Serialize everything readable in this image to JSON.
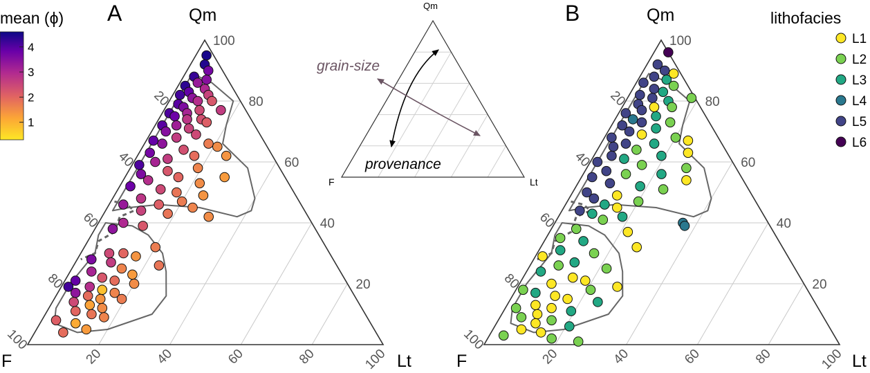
{
  "chart_data": [
    {
      "type": "scatter",
      "subtype": "ternary",
      "panel": "A",
      "vertex_labels": {
        "top": "Qm",
        "left": "F",
        "right": "Lt"
      },
      "ticks": [
        "20",
        "40",
        "60",
        "80",
        "100"
      ],
      "colorbar": {
        "title": "mean (ϕ)",
        "ticks": [
          "1",
          "2",
          "3",
          "4"
        ],
        "range": [
          0.3,
          4.6
        ],
        "colors": [
          "#fde725",
          "#fca636",
          "#e16462",
          "#b12a90",
          "#6a00a8",
          "#0d0887"
        ]
      },
      "points_note": "Qm / Lt percentages estimated; F = 100 - Qm - Lt; c = mean grain size (phi)",
      "points": [
        {
          "qm": 95,
          "lt": 3,
          "c": 4.5
        },
        {
          "qm": 92,
          "lt": 4,
          "c": 4.4
        },
        {
          "qm": 90,
          "lt": 6,
          "c": 3.6
        },
        {
          "qm": 88,
          "lt": 3,
          "c": 4.2
        },
        {
          "qm": 87,
          "lt": 7,
          "c": 3.4
        },
        {
          "qm": 86,
          "lt": 5,
          "c": 3.2
        },
        {
          "qm": 85,
          "lt": 2,
          "c": 4.3
        },
        {
          "qm": 84,
          "lt": 8,
          "c": 2.9
        },
        {
          "qm": 83,
          "lt": 4,
          "c": 3.8
        },
        {
          "qm": 82,
          "lt": 10,
          "c": 2.5
        },
        {
          "qm": 82,
          "lt": 2,
          "c": 4.1
        },
        {
          "qm": 81,
          "lt": 6,
          "c": 3.3
        },
        {
          "qm": 80,
          "lt": 12,
          "c": 2.2
        },
        {
          "qm": 80,
          "lt": 8,
          "c": 2.8
        },
        {
          "qm": 79,
          "lt": 3,
          "c": 3.9
        },
        {
          "qm": 78,
          "lt": 5,
          "c": 3.5
        },
        {
          "qm": 77,
          "lt": 16,
          "c": 2.6
        },
        {
          "qm": 77,
          "lt": 10,
          "c": 2.4
        },
        {
          "qm": 76,
          "lt": 7,
          "c": 3.0
        },
        {
          "qm": 76,
          "lt": 2,
          "c": 4.0
        },
        {
          "qm": 75,
          "lt": 4,
          "c": 3.7
        },
        {
          "qm": 74,
          "lt": 12,
          "c": 2.3
        },
        {
          "qm": 74,
          "lt": 8,
          "c": 2.7
        },
        {
          "qm": 73,
          "lt": 14,
          "c": 2.1
        },
        {
          "qm": 72,
          "lt": 6,
          "c": 3.1
        },
        {
          "qm": 72,
          "lt": 2,
          "c": 3.9
        },
        {
          "qm": 71,
          "lt": 10,
          "c": 2.5
        },
        {
          "qm": 70,
          "lt": 4,
          "c": 3.4
        },
        {
          "qm": 69,
          "lt": 13,
          "c": 2.4
        },
        {
          "qm": 68,
          "lt": 8,
          "c": 2.6
        },
        {
          "qm": 67,
          "lt": 2,
          "c": 3.8
        },
        {
          "qm": 66,
          "lt": 18,
          "c": 1.7
        },
        {
          "qm": 66,
          "lt": 5,
          "c": 3.3
        },
        {
          "qm": 65,
          "lt": 21,
          "c": 1.5
        },
        {
          "qm": 64,
          "lt": 12,
          "c": 2.3
        },
        {
          "qm": 63,
          "lt": 3,
          "c": 3.6
        },
        {
          "qm": 62,
          "lt": 25,
          "c": 1.4
        },
        {
          "qm": 62,
          "lt": 16,
          "c": 1.9
        },
        {
          "qm": 61,
          "lt": 9,
          "c": 2.6
        },
        {
          "qm": 60,
          "lt": 6,
          "c": 3.0
        },
        {
          "qm": 59,
          "lt": 2,
          "c": 4.0
        },
        {
          "qm": 58,
          "lt": 19,
          "c": 1.6
        },
        {
          "qm": 57,
          "lt": 11,
          "c": 2.2
        },
        {
          "qm": 56,
          "lt": 4,
          "c": 3.5
        },
        {
          "qm": 55,
          "lt": 28,
          "c": 1.3
        },
        {
          "qm": 55,
          "lt": 15,
          "c": 2.0
        },
        {
          "qm": 54,
          "lt": 7,
          "c": 2.8
        },
        {
          "qm": 53,
          "lt": 22,
          "c": 1.5
        },
        {
          "qm": 52,
          "lt": 3,
          "c": 3.7
        },
        {
          "qm": 51,
          "lt": 12,
          "c": 2.4
        },
        {
          "qm": 50,
          "lt": 17,
          "c": 1.8
        },
        {
          "qm": 49,
          "lt": 25,
          "c": 1.4
        },
        {
          "qm": 48,
          "lt": 8,
          "c": 2.7
        },
        {
          "qm": 47,
          "lt": 20,
          "c": 1.7
        },
        {
          "qm": 46,
          "lt": 4,
          "c": 3.2
        },
        {
          "qm": 46,
          "lt": 14,
          "c": 2.1
        },
        {
          "qm": 45,
          "lt": 24,
          "c": 1.6
        },
        {
          "qm": 44,
          "lt": 10,
          "c": 2.5
        },
        {
          "qm": 43,
          "lt": 18,
          "c": 1.8
        },
        {
          "qm": 42,
          "lt": 30,
          "c": 1.5
        },
        {
          "qm": 40,
          "lt": 7,
          "c": 2.9
        },
        {
          "qm": 39,
          "lt": 13,
          "c": 2.2
        },
        {
          "qm": 38,
          "lt": 5,
          "c": 3.3
        },
        {
          "qm": 32,
          "lt": 20,
          "c": 1.7
        },
        {
          "qm": 30,
          "lt": 8,
          "c": 2.4
        },
        {
          "qm": 30,
          "lt": 12,
          "c": 2.0
        },
        {
          "qm": 29,
          "lt": 16,
          "c": 1.4
        },
        {
          "qm": 28,
          "lt": 4,
          "c": 3.5
        },
        {
          "qm": 27,
          "lt": 10,
          "c": 2.6
        },
        {
          "qm": 26,
          "lt": 24,
          "c": 1.8
        },
        {
          "qm": 25,
          "lt": 14,
          "c": 1.6
        },
        {
          "qm": 24,
          "lt": 6,
          "c": 3.0
        },
        {
          "qm": 23,
          "lt": 18,
          "c": 1.3
        },
        {
          "qm": 22,
          "lt": 10,
          "c": 2.2
        },
        {
          "qm": 21,
          "lt": 3,
          "c": 3.8
        },
        {
          "qm": 21,
          "lt": 14,
          "c": 1.9
        },
        {
          "qm": 20,
          "lt": 20,
          "c": 1.5
        },
        {
          "qm": 19,
          "lt": 2,
          "c": 4.1
        },
        {
          "qm": 19,
          "lt": 8,
          "c": 2.8
        },
        {
          "qm": 18,
          "lt": 12,
          "c": 0.8
        },
        {
          "qm": 17,
          "lt": 16,
          "c": 1.6
        },
        {
          "qm": 17,
          "lt": 5,
          "c": 3.3
        },
        {
          "qm": 16,
          "lt": 9,
          "c": 1.9
        },
        {
          "qm": 15,
          "lt": 13,
          "c": 1.4
        },
        {
          "qm": 15,
          "lt": 19,
          "c": 1.7
        },
        {
          "qm": 14,
          "lt": 6,
          "c": 2.4
        },
        {
          "qm": 13,
          "lt": 11,
          "c": 1.2
        },
        {
          "qm": 12,
          "lt": 15,
          "c": 1.5
        },
        {
          "qm": 11,
          "lt": 8,
          "c": 2.0
        },
        {
          "qm": 10,
          "lt": 13,
          "c": 1.8
        },
        {
          "qm": 9,
          "lt": 17,
          "c": 1.6
        },
        {
          "qm": 8,
          "lt": 4,
          "c": 2.1
        },
        {
          "qm": 7,
          "lt": 10,
          "c": 1.1
        },
        {
          "qm": 5,
          "lt": 14,
          "c": 1.3
        },
        {
          "qm": 4,
          "lt": 8,
          "c": 1.9
        }
      ]
    },
    {
      "type": "scatter",
      "subtype": "ternary",
      "panel": "B",
      "vertex_labels": {
        "top": "Qm",
        "left": "F",
        "right": "Lt"
      },
      "ticks": [
        "20",
        "40",
        "60",
        "80",
        "100"
      ],
      "legend": {
        "title": "lithofacies",
        "position": "top-right",
        "entries": [
          {
            "name": "L1",
            "color": "#fde725"
          },
          {
            "name": "L2",
            "color": "#7ad151"
          },
          {
            "name": "L3",
            "color": "#22a884"
          },
          {
            "name": "L4",
            "color": "#2a788e"
          },
          {
            "name": "L5",
            "color": "#414487"
          },
          {
            "name": "L6",
            "color": "#440154"
          }
        ]
      },
      "points_note": "Qm / Lt percentages estimated; F = 100 - Qm - Lt; f = lithofacies",
      "points": [
        {
          "qm": 96,
          "lt": 4,
          "f": "L6"
        },
        {
          "qm": 92,
          "lt": 3,
          "f": "L5"
        },
        {
          "qm": 90,
          "lt": 6,
          "f": "L5"
        },
        {
          "qm": 89,
          "lt": 9,
          "f": "L1"
        },
        {
          "qm": 88,
          "lt": 4,
          "f": "L5"
        },
        {
          "qm": 87,
          "lt": 8,
          "f": "L3"
        },
        {
          "qm": 86,
          "lt": 2,
          "f": "L5"
        },
        {
          "qm": 85,
          "lt": 11,
          "f": "L2"
        },
        {
          "qm": 84,
          "lt": 6,
          "f": "L5"
        },
        {
          "qm": 83,
          "lt": 9,
          "f": "L3"
        },
        {
          "qm": 82,
          "lt": 3,
          "f": "L5"
        },
        {
          "qm": 81,
          "lt": 18,
          "f": "L2"
        },
        {
          "qm": 81,
          "lt": 7,
          "f": "L5"
        },
        {
          "qm": 80,
          "lt": 12,
          "f": "L3"
        },
        {
          "qm": 79,
          "lt": 4,
          "f": "L5"
        },
        {
          "qm": 78,
          "lt": 9,
          "f": "L1"
        },
        {
          "qm": 78,
          "lt": 14,
          "f": "L2"
        },
        {
          "qm": 77,
          "lt": 6,
          "f": "L5"
        },
        {
          "qm": 76,
          "lt": 2,
          "f": "L5"
        },
        {
          "qm": 75,
          "lt": 11,
          "f": "L3"
        },
        {
          "qm": 74,
          "lt": 5,
          "f": "L4"
        },
        {
          "qm": 73,
          "lt": 16,
          "f": "L2"
        },
        {
          "qm": 73,
          "lt": 8,
          "f": "L5"
        },
        {
          "qm": 72,
          "lt": 3,
          "f": "L5"
        },
        {
          "qm": 71,
          "lt": 13,
          "f": "L3"
        },
        {
          "qm": 70,
          "lt": 6,
          "f": "L5"
        },
        {
          "qm": 69,
          "lt": 10,
          "f": "L1"
        },
        {
          "qm": 68,
          "lt": 20,
          "f": "L2"
        },
        {
          "qm": 68,
          "lt": 2,
          "f": "L5"
        },
        {
          "qm": 67,
          "lt": 24,
          "f": "L1"
        },
        {
          "qm": 66,
          "lt": 15,
          "f": "L3"
        },
        {
          "qm": 66,
          "lt": 7,
          "f": "L5"
        },
        {
          "qm": 65,
          "lt": 4,
          "f": "L5"
        },
        {
          "qm": 64,
          "lt": 11,
          "f": "L2"
        },
        {
          "qm": 63,
          "lt": 26,
          "f": "L1"
        },
        {
          "qm": 62,
          "lt": 19,
          "f": "L3"
        },
        {
          "qm": 62,
          "lt": 5,
          "f": "L5"
        },
        {
          "qm": 61,
          "lt": 9,
          "f": "L3"
        },
        {
          "qm": 60,
          "lt": 2,
          "f": "L5"
        },
        {
          "qm": 59,
          "lt": 15,
          "f": "L2"
        },
        {
          "qm": 58,
          "lt": 28,
          "f": "L2"
        },
        {
          "qm": 57,
          "lt": 6,
          "f": "L5"
        },
        {
          "qm": 56,
          "lt": 22,
          "f": "L3"
        },
        {
          "qm": 56,
          "lt": 12,
          "f": "L2"
        },
        {
          "qm": 55,
          "lt": 3,
          "f": "L5"
        },
        {
          "qm": 54,
          "lt": 30,
          "f": "L1"
        },
        {
          "qm": 53,
          "lt": 9,
          "f": "L5"
        },
        {
          "qm": 52,
          "lt": 18,
          "f": "L3"
        },
        {
          "qm": 51,
          "lt": 25,
          "f": "L2"
        },
        {
          "qm": 50,
          "lt": 4,
          "f": "L5"
        },
        {
          "qm": 49,
          "lt": 13,
          "f": "L1"
        },
        {
          "qm": 48,
          "lt": 7,
          "f": "L5"
        },
        {
          "qm": 47,
          "lt": 20,
          "f": "L2"
        },
        {
          "qm": 46,
          "lt": 11,
          "f": "L3"
        },
        {
          "qm": 45,
          "lt": 15,
          "f": "L1"
        },
        {
          "qm": 44,
          "lt": 5,
          "f": "L5"
        },
        {
          "qm": 43,
          "lt": 9,
          "f": "L3"
        },
        {
          "qm": 42,
          "lt": 18,
          "f": "L3"
        },
        {
          "qm": 41,
          "lt": 13,
          "f": "L2"
        },
        {
          "qm": 40,
          "lt": 36,
          "f": "L4"
        },
        {
          "qm": 39,
          "lt": 37,
          "f": "L4"
        },
        {
          "qm": 38,
          "lt": 7,
          "f": "L2"
        },
        {
          "qm": 37,
          "lt": 22,
          "f": "L1"
        },
        {
          "qm": 35,
          "lt": 4,
          "f": "L2"
        },
        {
          "qm": 34,
          "lt": 11,
          "f": "L3"
        },
        {
          "qm": 32,
          "lt": 27,
          "f": "L1"
        },
        {
          "qm": 31,
          "lt": 6,
          "f": "L3"
        },
        {
          "qm": 30,
          "lt": 16,
          "f": "L2"
        },
        {
          "qm": 29,
          "lt": 2,
          "f": "L1"
        },
        {
          "qm": 27,
          "lt": 12,
          "f": "L3"
        },
        {
          "qm": 26,
          "lt": 8,
          "f": "L2"
        },
        {
          "qm": 25,
          "lt": 22,
          "f": "L2"
        },
        {
          "qm": 24,
          "lt": 4,
          "f": "L3"
        },
        {
          "qm": 22,
          "lt": 14,
          "f": "L1"
        },
        {
          "qm": 21,
          "lt": 18,
          "f": "L1"
        },
        {
          "qm": 20,
          "lt": 9,
          "f": "L1"
        },
        {
          "qm": 19,
          "lt": 28,
          "f": "L1"
        },
        {
          "qm": 18,
          "lt": 2,
          "f": "L2"
        },
        {
          "qm": 18,
          "lt": 21,
          "f": "L2"
        },
        {
          "qm": 17,
          "lt": 6,
          "f": "L3"
        },
        {
          "qm": 16,
          "lt": 12,
          "f": "L1"
        },
        {
          "qm": 15,
          "lt": 16,
          "f": "L1"
        },
        {
          "qm": 14,
          "lt": 25,
          "f": "L3"
        },
        {
          "qm": 13,
          "lt": 8,
          "f": "L1"
        },
        {
          "qm": 12,
          "lt": 3,
          "f": "L2"
        },
        {
          "qm": 12,
          "lt": 13,
          "f": "L1"
        },
        {
          "qm": 11,
          "lt": 19,
          "f": "L3"
        },
        {
          "qm": 10,
          "lt": 10,
          "f": "L1"
        },
        {
          "qm": 9,
          "lt": 6,
          "f": "L2"
        },
        {
          "qm": 8,
          "lt": 15,
          "f": "L2"
        },
        {
          "qm": 7,
          "lt": 11,
          "f": "L1"
        },
        {
          "qm": 6,
          "lt": 21,
          "f": "L3"
        },
        {
          "qm": 5,
          "lt": 8,
          "f": "L1"
        },
        {
          "qm": 4,
          "lt": 14,
          "f": "L1"
        },
        {
          "qm": 3,
          "lt": 4,
          "f": "L2"
        },
        {
          "qm": 2,
          "lt": 18,
          "f": "L2"
        },
        {
          "qm": 1,
          "lt": 26,
          "f": "L2"
        }
      ]
    },
    {
      "type": "diagram",
      "subtype": "ternary-inset",
      "vertex_labels": {
        "top": "Qm",
        "left": "F",
        "right": "Lt"
      },
      "annotations": [
        {
          "text": "grain-size",
          "color": "#6b5563",
          "style": "italic"
        },
        {
          "text": "provenance",
          "color": "#000000",
          "style": "italic"
        }
      ]
    }
  ],
  "panel_labels": [
    "A",
    "B"
  ]
}
